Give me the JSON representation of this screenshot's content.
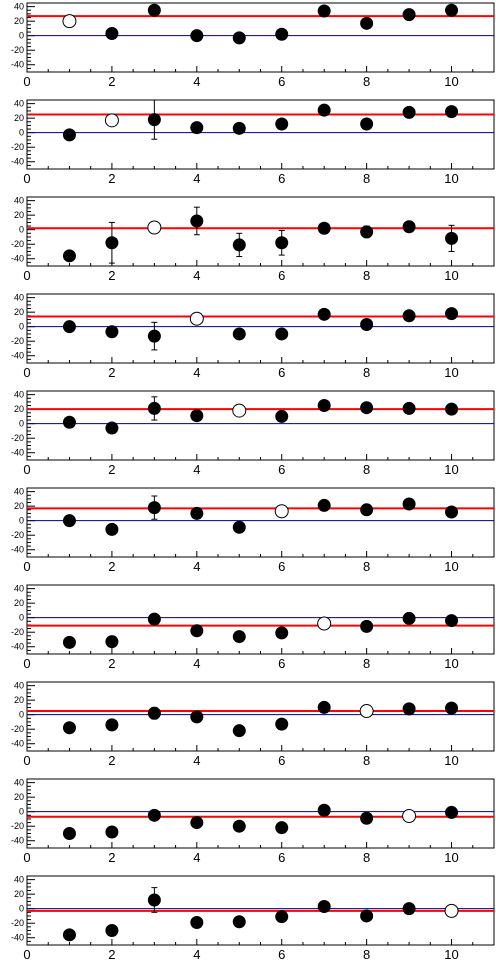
{
  "colors": {
    "reference_line": "#ff0000",
    "zero_line": "#00007f",
    "marker": "#000000",
    "frame": "#000000",
    "background": "#ffffff"
  },
  "chart_data": [
    {
      "type": "scatter",
      "xlim": [
        0,
        11
      ],
      "ylim": [
        -50,
        45
      ],
      "xticks": [
        "0",
        "2",
        "4",
        "6",
        "8",
        "10"
      ],
      "yticks": [
        "-40",
        "-20",
        "0",
        "20",
        "40"
      ],
      "reference_y": 27,
      "zero_line": true,
      "points": [
        {
          "x": 1,
          "y": 20,
          "open": true
        },
        {
          "x": 2,
          "y": 3
        },
        {
          "x": 3,
          "y": 35,
          "err": 4
        },
        {
          "x": 4,
          "y": 0
        },
        {
          "x": 5,
          "y": -3
        },
        {
          "x": 6,
          "y": 2
        },
        {
          "x": 7,
          "y": 34
        },
        {
          "x": 8,
          "y": 17
        },
        {
          "x": 9,
          "y": 29
        },
        {
          "x": 10,
          "y": 35
        }
      ]
    },
    {
      "type": "scatter",
      "xlim": [
        0,
        11
      ],
      "ylim": [
        -50,
        45
      ],
      "xticks": [
        "0",
        "2",
        "4",
        "6",
        "8",
        "10"
      ],
      "yticks": [
        "-40",
        "-20",
        "0",
        "20",
        "40"
      ],
      "reference_y": 25,
      "zero_line": true,
      "points": [
        {
          "x": 1,
          "y": -3
        },
        {
          "x": 2,
          "y": 17,
          "open": true
        },
        {
          "x": 3,
          "y": 18,
          "err": 27
        },
        {
          "x": 4,
          "y": 7
        },
        {
          "x": 5,
          "y": 6
        },
        {
          "x": 6,
          "y": 12
        },
        {
          "x": 7,
          "y": 31
        },
        {
          "x": 8,
          "y": 12
        },
        {
          "x": 9,
          "y": 28
        },
        {
          "x": 10,
          "y": 29
        }
      ]
    },
    {
      "type": "scatter",
      "xlim": [
        0,
        11
      ],
      "ylim": [
        -50,
        45
      ],
      "xticks": [
        "0",
        "2",
        "4",
        "6",
        "8",
        "10"
      ],
      "yticks": [
        "-40",
        "-20",
        "0",
        "20",
        "40"
      ],
      "reference_y": 2,
      "zero_line": false,
      "points": [
        {
          "x": 1,
          "y": -36,
          "err": 6
        },
        {
          "x": 2,
          "y": -18,
          "err": 28
        },
        {
          "x": 3,
          "y": 3,
          "open": true
        },
        {
          "x": 4,
          "y": 12,
          "err": 19
        },
        {
          "x": 5,
          "y": -21,
          "err": 16
        },
        {
          "x": 6,
          "y": -18,
          "err": 17
        },
        {
          "x": 7,
          "y": 2
        },
        {
          "x": 8,
          "y": -3,
          "err": 8
        },
        {
          "x": 9,
          "y": 4
        },
        {
          "x": 10,
          "y": -12,
          "err": 18
        }
      ]
    },
    {
      "type": "scatter",
      "xlim": [
        0,
        11
      ],
      "ylim": [
        -50,
        45
      ],
      "xticks": [
        "0",
        "2",
        "4",
        "6",
        "8",
        "10"
      ],
      "yticks": [
        "-40",
        "-20",
        "0",
        "20",
        "40"
      ],
      "reference_y": 14,
      "zero_line": true,
      "points": [
        {
          "x": 1,
          "y": 0
        },
        {
          "x": 2,
          "y": -7
        },
        {
          "x": 3,
          "y": -13,
          "err": 19
        },
        {
          "x": 4,
          "y": 11,
          "open": true
        },
        {
          "x": 5,
          "y": -10
        },
        {
          "x": 6,
          "y": -10
        },
        {
          "x": 7,
          "y": 17
        },
        {
          "x": 8,
          "y": 3
        },
        {
          "x": 9,
          "y": 15
        },
        {
          "x": 10,
          "y": 18
        }
      ]
    },
    {
      "type": "scatter",
      "xlim": [
        0,
        11
      ],
      "ylim": [
        -50,
        45
      ],
      "xticks": [
        "0",
        "2",
        "4",
        "6",
        "8",
        "10"
      ],
      "yticks": [
        "-40",
        "-20",
        "0",
        "20",
        "40"
      ],
      "reference_y": 20,
      "zero_line": true,
      "points": [
        {
          "x": 1,
          "y": 2
        },
        {
          "x": 2,
          "y": -6
        },
        {
          "x": 3,
          "y": 21,
          "err": 16
        },
        {
          "x": 4,
          "y": 11
        },
        {
          "x": 5,
          "y": 18,
          "open": true
        },
        {
          "x": 6,
          "y": 10
        },
        {
          "x": 7,
          "y": 25
        },
        {
          "x": 8,
          "y": 22
        },
        {
          "x": 9,
          "y": 21
        },
        {
          "x": 10,
          "y": 20
        }
      ]
    },
    {
      "type": "scatter",
      "xlim": [
        0,
        11
      ],
      "ylim": [
        -50,
        45
      ],
      "xticks": [
        "0",
        "2",
        "4",
        "6",
        "8",
        "10"
      ],
      "yticks": [
        "-40",
        "-20",
        "0",
        "20",
        "40"
      ],
      "reference_y": 17,
      "zero_line": true,
      "points": [
        {
          "x": 1,
          "y": 0
        },
        {
          "x": 2,
          "y": -12
        },
        {
          "x": 3,
          "y": 18,
          "err": 16
        },
        {
          "x": 4,
          "y": 10
        },
        {
          "x": 5,
          "y": -9
        },
        {
          "x": 6,
          "y": 13,
          "open": true
        },
        {
          "x": 7,
          "y": 21
        },
        {
          "x": 8,
          "y": 15
        },
        {
          "x": 9,
          "y": 23
        },
        {
          "x": 10,
          "y": 12
        }
      ]
    },
    {
      "type": "scatter",
      "xlim": [
        0,
        11
      ],
      "ylim": [
        -50,
        45
      ],
      "xticks": [
        "0",
        "2",
        "4",
        "6",
        "8",
        "10"
      ],
      "yticks": [
        "-40",
        "-20",
        "0",
        "20",
        "40"
      ],
      "reference_y": -11,
      "zero_line": true,
      "points": [
        {
          "x": 1,
          "y": -34
        },
        {
          "x": 2,
          "y": -33
        },
        {
          "x": 3,
          "y": -2
        },
        {
          "x": 4,
          "y": -18
        },
        {
          "x": 5,
          "y": -26
        },
        {
          "x": 6,
          "y": -21
        },
        {
          "x": 7,
          "y": -8,
          "open": true
        },
        {
          "x": 8,
          "y": -12
        },
        {
          "x": 9,
          "y": -1
        },
        {
          "x": 10,
          "y": -4
        }
      ]
    },
    {
      "type": "scatter",
      "xlim": [
        0,
        11
      ],
      "ylim": [
        -50,
        45
      ],
      "xticks": [
        "0",
        "2",
        "4",
        "6",
        "8",
        "10"
      ],
      "yticks": [
        "-40",
        "-20",
        "0",
        "20",
        "40"
      ],
      "reference_y": 5,
      "zero_line": true,
      "points": [
        {
          "x": 1,
          "y": -18
        },
        {
          "x": 2,
          "y": -14
        },
        {
          "x": 3,
          "y": 2,
          "err": 8
        },
        {
          "x": 4,
          "y": -3
        },
        {
          "x": 5,
          "y": -22
        },
        {
          "x": 6,
          "y": -13
        },
        {
          "x": 7,
          "y": 10
        },
        {
          "x": 8,
          "y": 5,
          "open": true
        },
        {
          "x": 9,
          "y": 8
        },
        {
          "x": 10,
          "y": 9
        }
      ]
    },
    {
      "type": "scatter",
      "xlim": [
        0,
        11
      ],
      "ylim": [
        -50,
        45
      ],
      "xticks": [
        "0",
        "2",
        "4",
        "6",
        "8",
        "10"
      ],
      "yticks": [
        "-40",
        "-20",
        "0",
        "20",
        "40"
      ],
      "reference_y": -7,
      "zero_line": true,
      "points": [
        {
          "x": 1,
          "y": -30
        },
        {
          "x": 2,
          "y": -28
        },
        {
          "x": 3,
          "y": -5
        },
        {
          "x": 4,
          "y": -15
        },
        {
          "x": 5,
          "y": -20
        },
        {
          "x": 6,
          "y": -22
        },
        {
          "x": 7,
          "y": 2
        },
        {
          "x": 8,
          "y": -9
        },
        {
          "x": 9,
          "y": -6,
          "open": true
        },
        {
          "x": 10,
          "y": -1
        }
      ]
    },
    {
      "type": "scatter",
      "xlim": [
        0,
        11
      ],
      "ylim": [
        -50,
        45
      ],
      "xticks": [
        "0",
        "2",
        "4",
        "6",
        "8",
        "10"
      ],
      "yticks": [
        "-40",
        "-20",
        "0",
        "20",
        "40"
      ],
      "reference_y": -3,
      "zero_line": true,
      "points": [
        {
          "x": 1,
          "y": -36
        },
        {
          "x": 2,
          "y": -30
        },
        {
          "x": 3,
          "y": 12,
          "err": 17
        },
        {
          "x": 4,
          "y": -19
        },
        {
          "x": 5,
          "y": -18
        },
        {
          "x": 6,
          "y": -11
        },
        {
          "x": 7,
          "y": 3
        },
        {
          "x": 8,
          "y": -10
        },
        {
          "x": 9,
          "y": 0
        },
        {
          "x": 10,
          "y": -3,
          "open": true
        }
      ]
    }
  ]
}
